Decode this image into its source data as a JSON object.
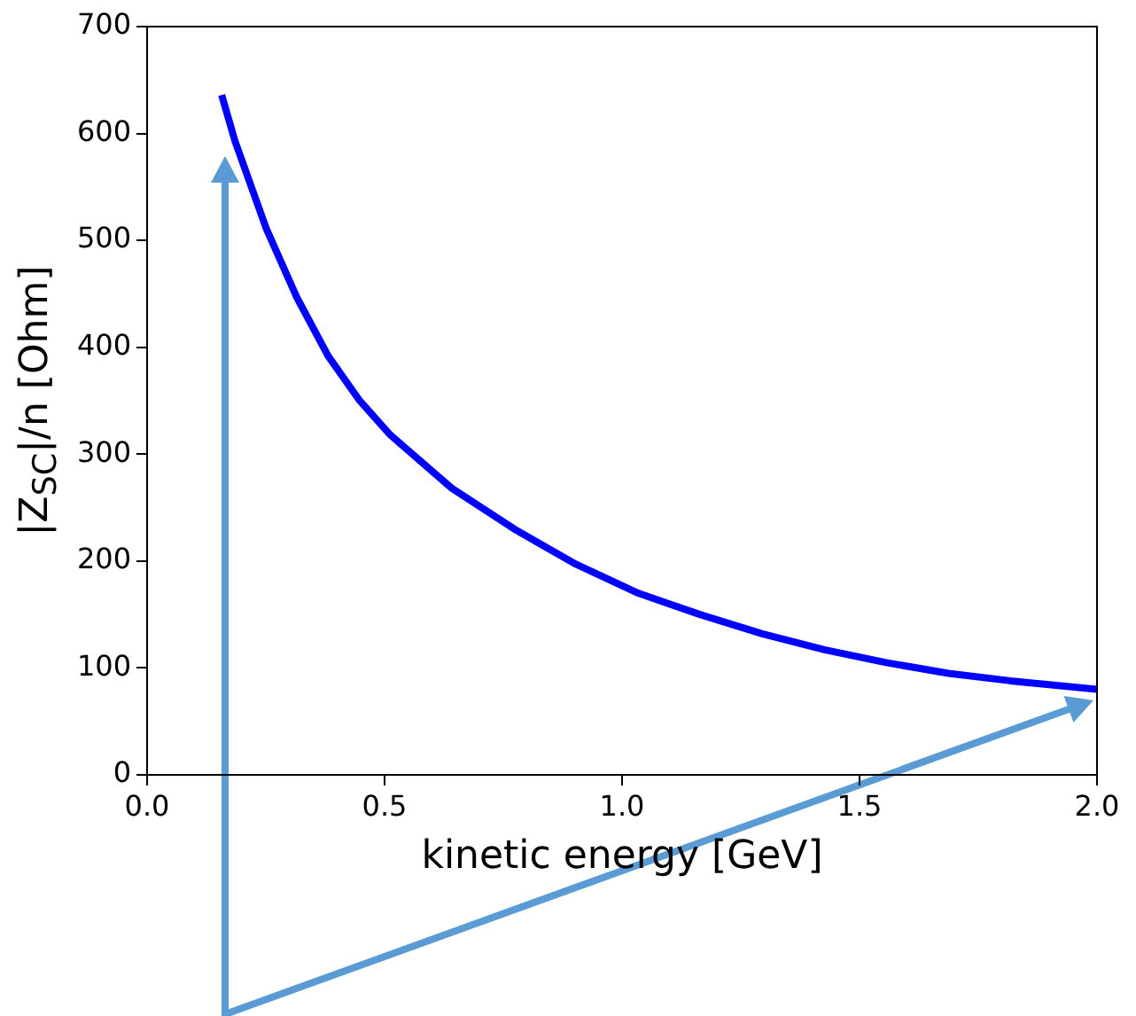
{
  "chart_data": {
    "type": "line",
    "xlabel": "kinetic energy [GeV]",
    "ylabel": "|Z$_{SC}$|/n [Ohm]",
    "x": [
      0.157,
      0.185,
      0.251,
      0.316,
      0.381,
      0.446,
      0.512,
      0.642,
      0.773,
      0.903,
      1.034,
      1.164,
      1.295,
      1.426,
      1.556,
      1.687,
      1.817,
      2.0
    ],
    "series": [
      {
        "color": "#0000ff",
        "values": [
          636,
          593,
          511,
          446,
          392,
          351,
          318,
          268,
          230,
          197,
          170,
          150,
          132,
          117,
          105,
          95,
          88,
          80
        ]
      }
    ],
    "xlim": [
      0.0,
      2.0
    ],
    "xticks": [
      {
        "value": 0,
        "label": "0.0"
      },
      0.5,
      {
        "value": 1,
        "label": "1.0"
      },
      1.5,
      {
        "value": 2,
        "label": "2.0"
      }
    ],
    "ylim": [
      0,
      700
    ],
    "yticks": [
      0,
      100,
      200,
      300,
      400,
      500,
      600,
      700
    ],
    "grid": false,
    "legend": false,
    "marker": "none",
    "line_style": "solid"
  }
}
